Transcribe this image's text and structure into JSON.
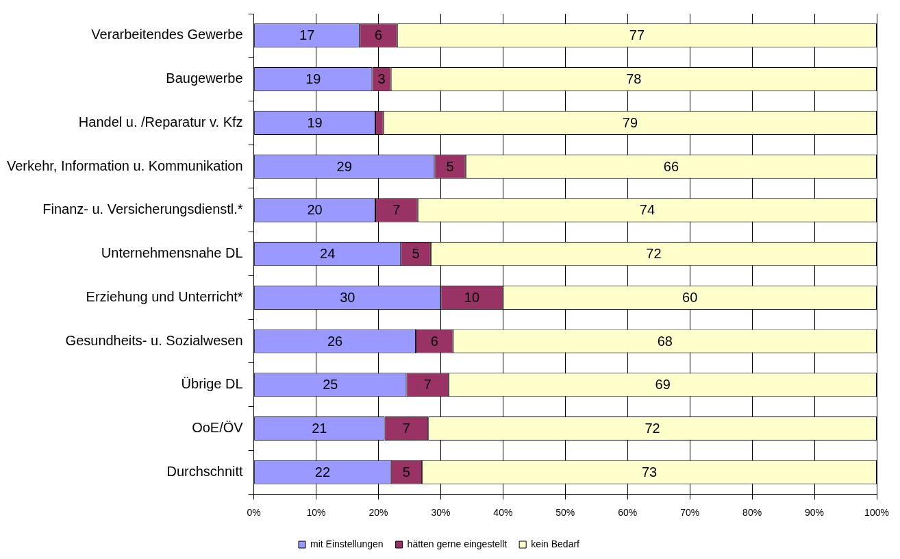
{
  "chart_data": {
    "type": "bar",
    "orientation": "horizontal",
    "stacked": true,
    "categories": [
      "Verarbeitendes Gewerbe",
      "Baugewerbe",
      "Handel u. /Reparatur v. Kfz",
      "Verkehr, Information u. Kommunikation",
      "Finanz- u. Versicherungsdienstl.*",
      "Unternehmensnahe DL",
      "Erziehung und Unterricht*",
      "Gesundheits- u. Sozialwesen",
      "Übrige DL",
      "OoE/ÖV",
      "Durchschnitt"
    ],
    "series": [
      {
        "name": "mit Einstellungen",
        "color": "#9999ff",
        "values": [
          17,
          19,
          19.5,
          29,
          19.5,
          23.6,
          30,
          26,
          24.5,
          21,
          22
        ],
        "value_labels": [
          "17",
          "19",
          "19",
          "29",
          "20",
          "24",
          "30",
          "26",
          "25",
          "21",
          "22"
        ]
      },
      {
        "name": "hätten gerne eingestellt",
        "color": "#993366",
        "values": [
          6,
          3,
          1.3,
          5,
          6.8,
          4.8,
          10,
          6,
          6.8,
          7,
          5
        ],
        "value_labels": [
          "6",
          "3",
          null,
          "5",
          "7",
          "5",
          "10",
          "6",
          "7",
          "7",
          "5"
        ]
      },
      {
        "name": "kein Bedarf",
        "color": "#ffffcc",
        "values": [
          77,
          78,
          79.2,
          66,
          73.7,
          71.6,
          60,
          68,
          68.7,
          72,
          73
        ],
        "value_labels": [
          "77",
          "78",
          "79",
          "66",
          "74",
          "72",
          "60",
          "68",
          "69",
          "72",
          "73"
        ]
      }
    ],
    "xlim": [
      0,
      100
    ],
    "xticks": [
      {
        "value": 0,
        "label": "0%"
      },
      {
        "value": 10,
        "label": "10%"
      },
      {
        "value": 20,
        "label": "20%"
      },
      {
        "value": 30,
        "label": "30%"
      },
      {
        "value": 40,
        "label": "40%"
      },
      {
        "value": 50,
        "label": "50%"
      },
      {
        "value": 60,
        "label": "60%"
      },
      {
        "value": 70,
        "label": "70%"
      },
      {
        "value": 80,
        "label": "80%"
      },
      {
        "value": 90,
        "label": "90%"
      },
      {
        "value": 100,
        "label": "100%"
      }
    ],
    "grid": "x",
    "legend": "bottom"
  }
}
